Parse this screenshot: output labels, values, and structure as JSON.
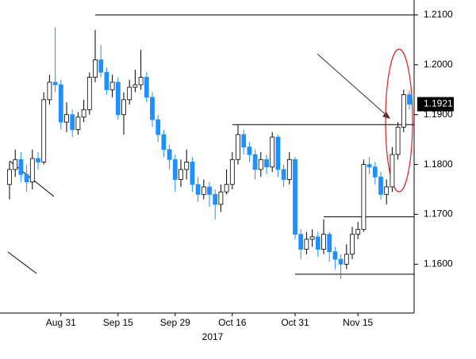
{
  "chart_data": {
    "type": "candlestick",
    "categories": [
      null,
      null,
      null,
      null,
      null,
      null,
      null,
      null,
      null,
      "Aug 31",
      null,
      null,
      null,
      null,
      null,
      null,
      null,
      null,
      null,
      "Sep 15",
      null,
      null,
      null,
      null,
      null,
      null,
      null,
      null,
      null,
      "Sep 29",
      null,
      null,
      null,
      null,
      null,
      null,
      null,
      null,
      null,
      "Oct 16",
      null,
      null,
      null,
      null,
      null,
      null,
      null,
      null,
      null,
      null,
      "Oct 31",
      null,
      null,
      null,
      null,
      null,
      null,
      null,
      null,
      null,
      null,
      "Nov 15",
      null,
      null,
      null,
      null,
      null,
      null,
      null,
      null,
      null
    ],
    "x_label": "2017",
    "open": [
      1.176,
      1.179,
      1.181,
      1.178,
      1.1765,
      1.1812,
      1.1805,
      1.193,
      1.1965,
      1.196,
      1.1885,
      1.19,
      1.187,
      1.1895,
      1.191,
      1.1975,
      1.201,
      1.1985,
      1.195,
      1.1965,
      1.19,
      1.193,
      1.1955,
      1.196,
      1.1975,
      1.1935,
      1.189,
      1.186,
      1.183,
      1.181,
      1.177,
      1.179,
      1.1805,
      1.176,
      1.174,
      1.1755,
      1.174,
      1.172,
      1.1745,
      1.176,
      1.181,
      1.186,
      1.1835,
      1.182,
      1.179,
      1.181,
      1.1795,
      1.1855,
      1.179,
      1.177,
      1.181,
      1.166,
      1.163,
      1.165,
      1.1655,
      1.163,
      1.166,
      1.1625,
      1.161,
      1.16,
      1.162,
      1.166,
      1.167,
      1.18,
      1.1795,
      1.1775,
      1.174,
      1.1755,
      1.182,
      1.1875,
      1.194
    ],
    "high": [
      1.1805,
      1.183,
      1.1825,
      1.18,
      1.183,
      1.1825,
      1.1945,
      1.198,
      1.2075,
      1.197,
      1.1925,
      1.191,
      1.1905,
      1.193,
      1.1985,
      1.207,
      1.204,
      1.1995,
      1.198,
      1.1975,
      1.1945,
      1.197,
      1.199,
      1.203,
      1.1985,
      1.1945,
      1.19,
      1.187,
      1.184,
      1.182,
      1.181,
      1.183,
      1.1815,
      1.1775,
      1.177,
      1.1765,
      1.175,
      1.176,
      1.179,
      1.1825,
      1.188,
      1.187,
      1.1845,
      1.183,
      1.1825,
      1.182,
      1.1865,
      1.186,
      1.18,
      1.1825,
      1.1815,
      1.167,
      1.1665,
      1.167,
      1.1665,
      1.169,
      1.1665,
      1.1635,
      1.162,
      1.164,
      1.1675,
      1.1685,
      1.181,
      1.1815,
      1.1805,
      1.1785,
      1.177,
      1.1835,
      1.1885,
      1.195,
      1.1948
    ],
    "low": [
      1.173,
      1.1775,
      1.1765,
      1.1745,
      1.175,
      1.179,
      1.18,
      1.192,
      1.1945,
      1.187,
      1.1865,
      1.1855,
      1.186,
      1.1885,
      1.19,
      1.1965,
      1.1975,
      1.194,
      1.1935,
      1.189,
      1.186,
      1.192,
      1.1945,
      1.195,
      1.1925,
      1.1875,
      1.1845,
      1.1815,
      1.179,
      1.1745,
      1.1755,
      1.177,
      1.1745,
      1.1725,
      1.173,
      1.1715,
      1.169,
      1.1705,
      1.174,
      1.175,
      1.18,
      1.182,
      1.1805,
      1.177,
      1.1775,
      1.178,
      1.1785,
      1.1775,
      1.1755,
      1.176,
      1.165,
      1.161,
      1.162,
      1.1635,
      1.1615,
      1.162,
      1.1605,
      1.159,
      1.157,
      1.159,
      1.161,
      1.165,
      1.1665,
      1.178,
      1.176,
      1.173,
      1.172,
      1.1745,
      1.181,
      1.1865,
      1.191
    ],
    "close": [
      1.179,
      1.181,
      1.178,
      1.1765,
      1.1812,
      1.1805,
      1.193,
      1.1965,
      1.196,
      1.1885,
      1.19,
      1.187,
      1.1895,
      1.191,
      1.1975,
      1.201,
      1.1985,
      1.195,
      1.1965,
      1.19,
      1.193,
      1.1955,
      1.196,
      1.1975,
      1.1935,
      1.189,
      1.186,
      1.183,
      1.181,
      1.177,
      1.179,
      1.1805,
      1.176,
      1.174,
      1.1755,
      1.174,
      1.172,
      1.1745,
      1.176,
      1.181,
      1.186,
      1.1835,
      1.182,
      1.179,
      1.181,
      1.1795,
      1.1855,
      1.179,
      1.177,
      1.181,
      1.166,
      1.163,
      1.165,
      1.1655,
      1.163,
      1.166,
      1.1625,
      1.161,
      1.16,
      1.162,
      1.166,
      1.167,
      1.18,
      1.1795,
      1.1775,
      1.174,
      1.1755,
      1.182,
      1.1875,
      1.194,
      1.1921
    ],
    "up_color": "#ffffff",
    "down_color": "#1e90ff",
    "ylim": [
      1.151,
      1.213
    ],
    "yticks": [
      {
        "value": 1.16,
        "label": "1.1600"
      },
      {
        "value": 1.17,
        "label": "1.1700"
      },
      {
        "value": 1.18,
        "label": "1.1800"
      },
      {
        "value": 1.19,
        "label": "1.1900"
      },
      {
        "value": 1.2,
        "label": "1.2000"
      },
      {
        "value": 1.21,
        "label": "1.2100"
      }
    ],
    "last_price": 1.1921,
    "levels": [
      {
        "value": 1.21,
        "start": 15
      },
      {
        "value": 1.188,
        "start": 39
      },
      {
        "value": 1.1695,
        "start": 55
      },
      {
        "value": 1.158,
        "start": 50
      }
    ]
  }
}
